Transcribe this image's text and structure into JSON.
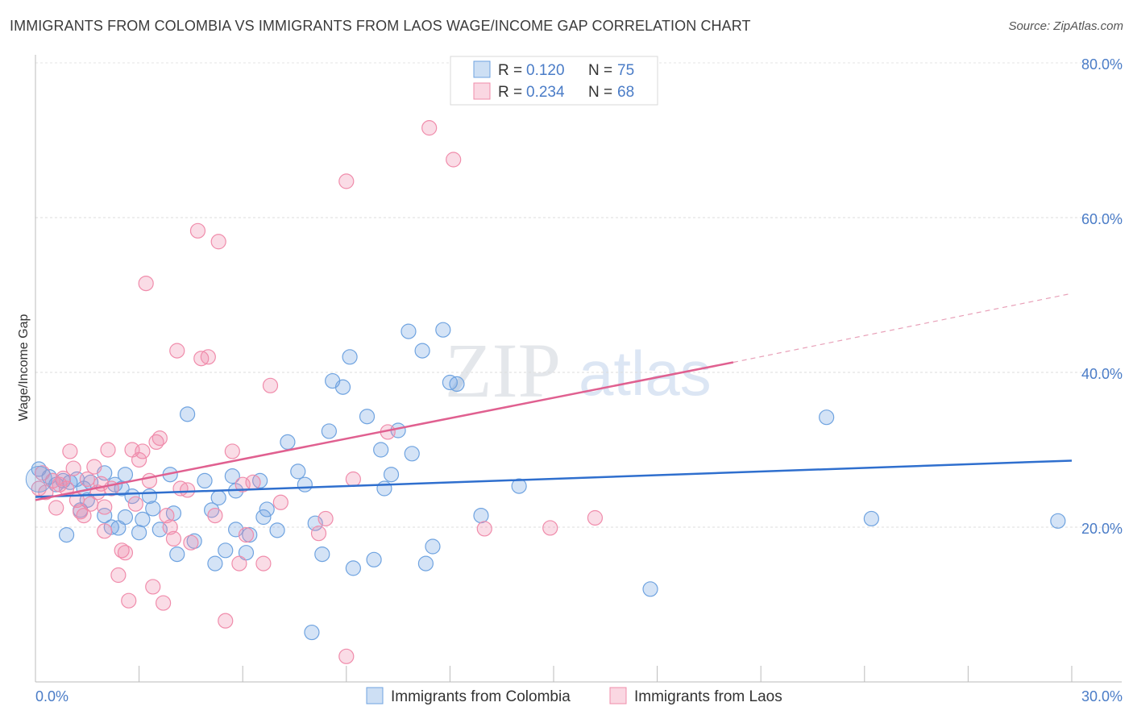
{
  "header": {
    "title": "IMMIGRANTS FROM COLOMBIA VS IMMIGRANTS FROM LAOS WAGE/INCOME GAP CORRELATION CHART",
    "source": "Source: ZipAtlas.com"
  },
  "watermark": {
    "zip": "ZIP",
    "atlas": "atlas"
  },
  "stats_legend": {
    "rows": [
      {
        "r_label": "R =",
        "r_value": "0.120",
        "n_label": "N =",
        "n_value": "75",
        "color": "#6fa3e0"
      },
      {
        "r_label": "R =",
        "r_value": "0.234",
        "n_label": "N =",
        "n_value": "68",
        "color": "#f08cab"
      }
    ]
  },
  "chart_data": {
    "type": "scatter",
    "title": "IMMIGRANTS FROM COLOMBIA VS IMMIGRANTS FROM LAOS WAGE/INCOME GAP CORRELATION CHART",
    "xlabel": "",
    "ylabel": "Wage/Income Gap",
    "xlim": [
      0,
      30
    ],
    "ylim": [
      0,
      83
    ],
    "x_tick_labels": [
      "0.0%",
      "30.0%"
    ],
    "y_ticks": [
      20,
      40,
      60,
      80
    ],
    "y_tick_labels": [
      "20.0%",
      "40.0%",
      "60.0%",
      "80.0%"
    ],
    "grid": true,
    "series": [
      {
        "name": "Immigrants from Colombia",
        "color": "#6fa3e0",
        "fill": "rgba(111,163,224,0.30)",
        "trend": {
          "x0": 0,
          "y0": 23.9,
          "x1": 30,
          "y1": 28.6,
          "dashed_to": null
        },
        "points": [
          [
            0.1,
            27.5
          ],
          [
            0.4,
            26.5
          ],
          [
            0.6,
            25.5
          ],
          [
            0.8,
            26.0
          ],
          [
            1.0,
            25.8
          ],
          [
            0.9,
            19.0
          ],
          [
            1.4,
            25.0
          ],
          [
            1.6,
            25.8
          ],
          [
            1.3,
            22.2
          ],
          [
            1.5,
            23.5
          ],
          [
            2.0,
            27.0
          ],
          [
            2.0,
            21.5
          ],
          [
            2.2,
            20.0
          ],
          [
            2.6,
            26.8
          ],
          [
            2.5,
            25.0
          ],
          [
            2.8,
            24.0
          ],
          [
            2.6,
            21.3
          ],
          [
            2.4,
            19.9
          ],
          [
            3.0,
            19.3
          ],
          [
            3.4,
            22.4
          ],
          [
            3.3,
            24.0
          ],
          [
            3.6,
            19.7
          ],
          [
            3.9,
            26.8
          ],
          [
            4.0,
            21.8
          ],
          [
            4.1,
            16.5
          ],
          [
            4.6,
            18.2
          ],
          [
            4.4,
            34.6
          ],
          [
            4.9,
            26.0
          ],
          [
            5.1,
            22.2
          ],
          [
            5.3,
            23.8
          ],
          [
            5.2,
            15.3
          ],
          [
            5.7,
            26.6
          ],
          [
            5.5,
            17.0
          ],
          [
            5.8,
            19.7
          ],
          [
            6.1,
            16.7
          ],
          [
            6.2,
            19.0
          ],
          [
            6.5,
            26.0
          ],
          [
            6.6,
            21.3
          ],
          [
            6.7,
            22.3
          ],
          [
            7.0,
            19.6
          ],
          [
            7.3,
            31.0
          ],
          [
            7.6,
            27.2
          ],
          [
            7.8,
            25.5
          ],
          [
            8.1,
            20.5
          ],
          [
            8.3,
            16.5
          ],
          [
            8.5,
            32.4
          ],
          [
            8.6,
            38.9
          ],
          [
            8.9,
            38.1
          ],
          [
            9.2,
            14.7
          ],
          [
            9.1,
            42.0
          ],
          [
            9.6,
            34.3
          ],
          [
            9.8,
            15.8
          ],
          [
            10.1,
            25.0
          ],
          [
            10.3,
            26.8
          ],
          [
            10.5,
            32.5
          ],
          [
            10.9,
            29.5
          ],
          [
            10.8,
            45.3
          ],
          [
            11.3,
            15.3
          ],
          [
            11.2,
            42.8
          ],
          [
            11.5,
            17.5
          ],
          [
            11.8,
            45.5
          ],
          [
            12.0,
            38.7
          ],
          [
            12.2,
            38.5
          ],
          [
            8.0,
            6.4
          ],
          [
            12.9,
            21.5
          ],
          [
            14.0,
            25.3
          ],
          [
            17.8,
            12.0
          ],
          [
            22.9,
            34.2
          ],
          [
            24.2,
            21.1
          ],
          [
            29.6,
            20.8
          ],
          [
            1.2,
            26.2
          ],
          [
            2.3,
            25.5
          ],
          [
            3.1,
            21.0
          ],
          [
            5.8,
            24.7
          ],
          [
            10.0,
            30.0
          ]
        ]
      },
      {
        "name": "Immigrants from Laos",
        "color": "#f08cab",
        "fill": "rgba(240,140,171,0.30)",
        "trend": {
          "x0": 0,
          "y0": 23.5,
          "x1": 20.2,
          "y1": 41.3,
          "dashed_to": [
            30,
            50.2
          ]
        },
        "points": [
          [
            0.1,
            25.0
          ],
          [
            0.3,
            24.5
          ],
          [
            0.5,
            26.0
          ],
          [
            0.7,
            25.5
          ],
          [
            0.9,
            25.0
          ],
          [
            0.6,
            22.5
          ],
          [
            1.0,
            29.8
          ],
          [
            1.1,
            27.6
          ],
          [
            1.2,
            23.5
          ],
          [
            1.3,
            22.0
          ],
          [
            1.4,
            21.5
          ],
          [
            1.5,
            26.2
          ],
          [
            1.6,
            23.0
          ],
          [
            1.7,
            27.8
          ],
          [
            1.8,
            24.5
          ],
          [
            2.0,
            22.6
          ],
          [
            2.1,
            30.0
          ],
          [
            2.0,
            19.5
          ],
          [
            2.2,
            25.0
          ],
          [
            2.4,
            13.8
          ],
          [
            2.5,
            17.0
          ],
          [
            2.6,
            16.7
          ],
          [
            2.7,
            10.5
          ],
          [
            2.8,
            30.0
          ],
          [
            3.0,
            28.7
          ],
          [
            3.1,
            29.8
          ],
          [
            3.2,
            51.5
          ],
          [
            3.3,
            26.0
          ],
          [
            3.5,
            31.0
          ],
          [
            3.6,
            31.5
          ],
          [
            3.4,
            12.3
          ],
          [
            3.7,
            10.2
          ],
          [
            3.8,
            21.5
          ],
          [
            3.9,
            20.0
          ],
          [
            4.0,
            18.5
          ],
          [
            4.1,
            42.8
          ],
          [
            4.2,
            25.0
          ],
          [
            4.5,
            18.0
          ],
          [
            4.7,
            58.3
          ],
          [
            4.8,
            41.8
          ],
          [
            5.0,
            42.0
          ],
          [
            5.2,
            21.5
          ],
          [
            5.3,
            56.9
          ],
          [
            5.5,
            7.9
          ],
          [
            5.7,
            29.8
          ],
          [
            5.9,
            15.3
          ],
          [
            6.1,
            19.0
          ],
          [
            6.3,
            25.8
          ],
          [
            6.6,
            15.3
          ],
          [
            6.8,
            38.3
          ],
          [
            7.1,
            23.2
          ],
          [
            8.2,
            19.2
          ],
          [
            8.4,
            21.1
          ],
          [
            9.0,
            64.7
          ],
          [
            9.0,
            3.3
          ],
          [
            9.2,
            26.2
          ],
          [
            10.2,
            32.3
          ],
          [
            11.4,
            71.6
          ],
          [
            12.1,
            67.5
          ],
          [
            13.0,
            19.8
          ],
          [
            14.9,
            19.9
          ],
          [
            16.2,
            21.2
          ],
          [
            0.2,
            27.0
          ],
          [
            0.8,
            26.3
          ],
          [
            1.9,
            25.6
          ],
          [
            2.9,
            23.0
          ],
          [
            4.4,
            24.8
          ],
          [
            6.0,
            25.5
          ]
        ]
      }
    ]
  },
  "bottom_legend": {
    "items": [
      {
        "label": "Immigrants from Colombia",
        "color": "#6fa3e0"
      },
      {
        "label": "Immigrants from Laos",
        "color": "#f08cab"
      }
    ]
  }
}
